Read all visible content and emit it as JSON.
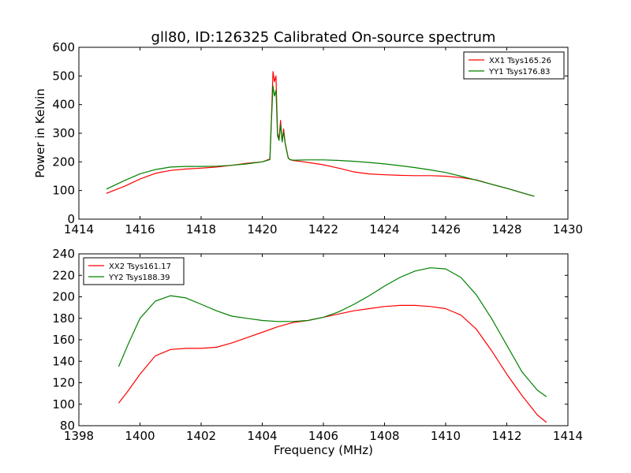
{
  "figure": {
    "title": "gll80, ID:126325 Calibrated On-source spectrum"
  },
  "chart_data": [
    {
      "type": "line",
      "title": "gll80, ID:126325 Calibrated On-source spectrum",
      "xlabel": "",
      "ylabel": "Power in Kelvin",
      "xlim": [
        1414,
        1430
      ],
      "ylim": [
        0,
        600
      ],
      "xticks": [
        "1414",
        "1416",
        "1418",
        "1420",
        "1422",
        "1424",
        "1426",
        "1428",
        "1430"
      ],
      "yticks": [
        "0",
        "100",
        "200",
        "300",
        "400",
        "500",
        "600"
      ],
      "grid": false,
      "legend_position": "top-right",
      "series": [
        {
          "name": "XX1 Tsys165.26",
          "color": "#ff0000",
          "x": [
            1414.9,
            1415.5,
            1416.0,
            1416.5,
            1417.0,
            1417.5,
            1418.0,
            1418.5,
            1419.0,
            1419.5,
            1420.0,
            1420.25,
            1420.3,
            1420.35,
            1420.4,
            1420.45,
            1420.5,
            1420.55,
            1420.6,
            1420.65,
            1420.7,
            1420.75,
            1420.8,
            1420.85,
            1420.9,
            1421.0,
            1421.5,
            1422.0,
            1422.5,
            1423.0,
            1423.5,
            1424.0,
            1424.5,
            1425.0,
            1425.5,
            1426.0,
            1426.5,
            1427.0,
            1427.5,
            1428.0,
            1428.5,
            1428.9
          ],
          "y": [
            90,
            115,
            140,
            160,
            170,
            175,
            178,
            182,
            188,
            195,
            200,
            210,
            350,
            515,
            480,
            500,
            300,
            280,
            345,
            270,
            315,
            265,
            240,
            215,
            208,
            205,
            198,
            190,
            178,
            165,
            158,
            155,
            153,
            152,
            152,
            150,
            145,
            137,
            122,
            108,
            92,
            80
          ]
        },
        {
          "name": "YY1 Tsys176.83",
          "color": "#008000",
          "x": [
            1414.9,
            1415.5,
            1416.0,
            1416.5,
            1417.0,
            1417.5,
            1418.0,
            1418.5,
            1419.0,
            1419.5,
            1420.0,
            1420.25,
            1420.3,
            1420.35,
            1420.4,
            1420.45,
            1420.5,
            1420.55,
            1420.6,
            1420.65,
            1420.7,
            1420.75,
            1420.8,
            1420.85,
            1420.9,
            1421.0,
            1421.5,
            1422.0,
            1422.5,
            1423.0,
            1423.5,
            1424.0,
            1424.5,
            1425.0,
            1425.5,
            1426.0,
            1426.5,
            1427.0,
            1427.5,
            1428.0,
            1428.5,
            1428.9
          ],
          "y": [
            105,
            135,
            158,
            173,
            182,
            184,
            184,
            185,
            188,
            193,
            200,
            208,
            340,
            465,
            430,
            450,
            290,
            275,
            330,
            270,
            305,
            262,
            238,
            213,
            208,
            206,
            207,
            207,
            205,
            202,
            198,
            193,
            187,
            180,
            172,
            163,
            150,
            136,
            122,
            108,
            92,
            80
          ]
        }
      ]
    },
    {
      "type": "line",
      "title": "",
      "xlabel": "Frequency (MHz)",
      "ylabel": "",
      "xlim": [
        1398,
        1414
      ],
      "ylim": [
        80,
        240
      ],
      "xticks": [
        "1398",
        "1400",
        "1402",
        "1404",
        "1406",
        "1408",
        "1410",
        "1412",
        "1414"
      ],
      "yticks": [
        "80",
        "100",
        "120",
        "140",
        "160",
        "180",
        "200",
        "220",
        "240"
      ],
      "grid": false,
      "legend_position": "top-left",
      "series": [
        {
          "name": "XX2 Tsys161.17",
          "color": "#ff0000",
          "x": [
            1399.3,
            1399.6,
            1400.0,
            1400.5,
            1401.0,
            1401.5,
            1402.0,
            1402.5,
            1403.0,
            1403.5,
            1404.0,
            1404.5,
            1405.0,
            1405.5,
            1406.0,
            1406.5,
            1407.0,
            1407.5,
            1408.0,
            1408.5,
            1409.0,
            1409.5,
            1410.0,
            1410.5,
            1411.0,
            1411.5,
            1412.0,
            1412.5,
            1413.0,
            1413.3
          ],
          "y": [
            101,
            112,
            128,
            145,
            151,
            152,
            152,
            153,
            157,
            162,
            167,
            172,
            176,
            178,
            181,
            184,
            187,
            189,
            191,
            192,
            192,
            191,
            189,
            183,
            170,
            150,
            128,
            108,
            90,
            83
          ]
        },
        {
          "name": "YY2 Tsys188.39",
          "color": "#008000",
          "x": [
            1399.3,
            1399.6,
            1400.0,
            1400.5,
            1401.0,
            1401.5,
            1402.0,
            1402.5,
            1403.0,
            1403.5,
            1404.0,
            1404.5,
            1405.0,
            1405.5,
            1406.0,
            1406.5,
            1407.0,
            1407.5,
            1408.0,
            1408.5,
            1409.0,
            1409.5,
            1410.0,
            1410.5,
            1411.0,
            1411.5,
            1412.0,
            1412.5,
            1413.0,
            1413.3
          ],
          "y": [
            135,
            155,
            180,
            196,
            201,
            199,
            193,
            187,
            182,
            180,
            178,
            177,
            177,
            178,
            181,
            186,
            193,
            201,
            210,
            218,
            224,
            227,
            226,
            218,
            202,
            180,
            155,
            130,
            113,
            107
          ]
        }
      ]
    }
  ]
}
